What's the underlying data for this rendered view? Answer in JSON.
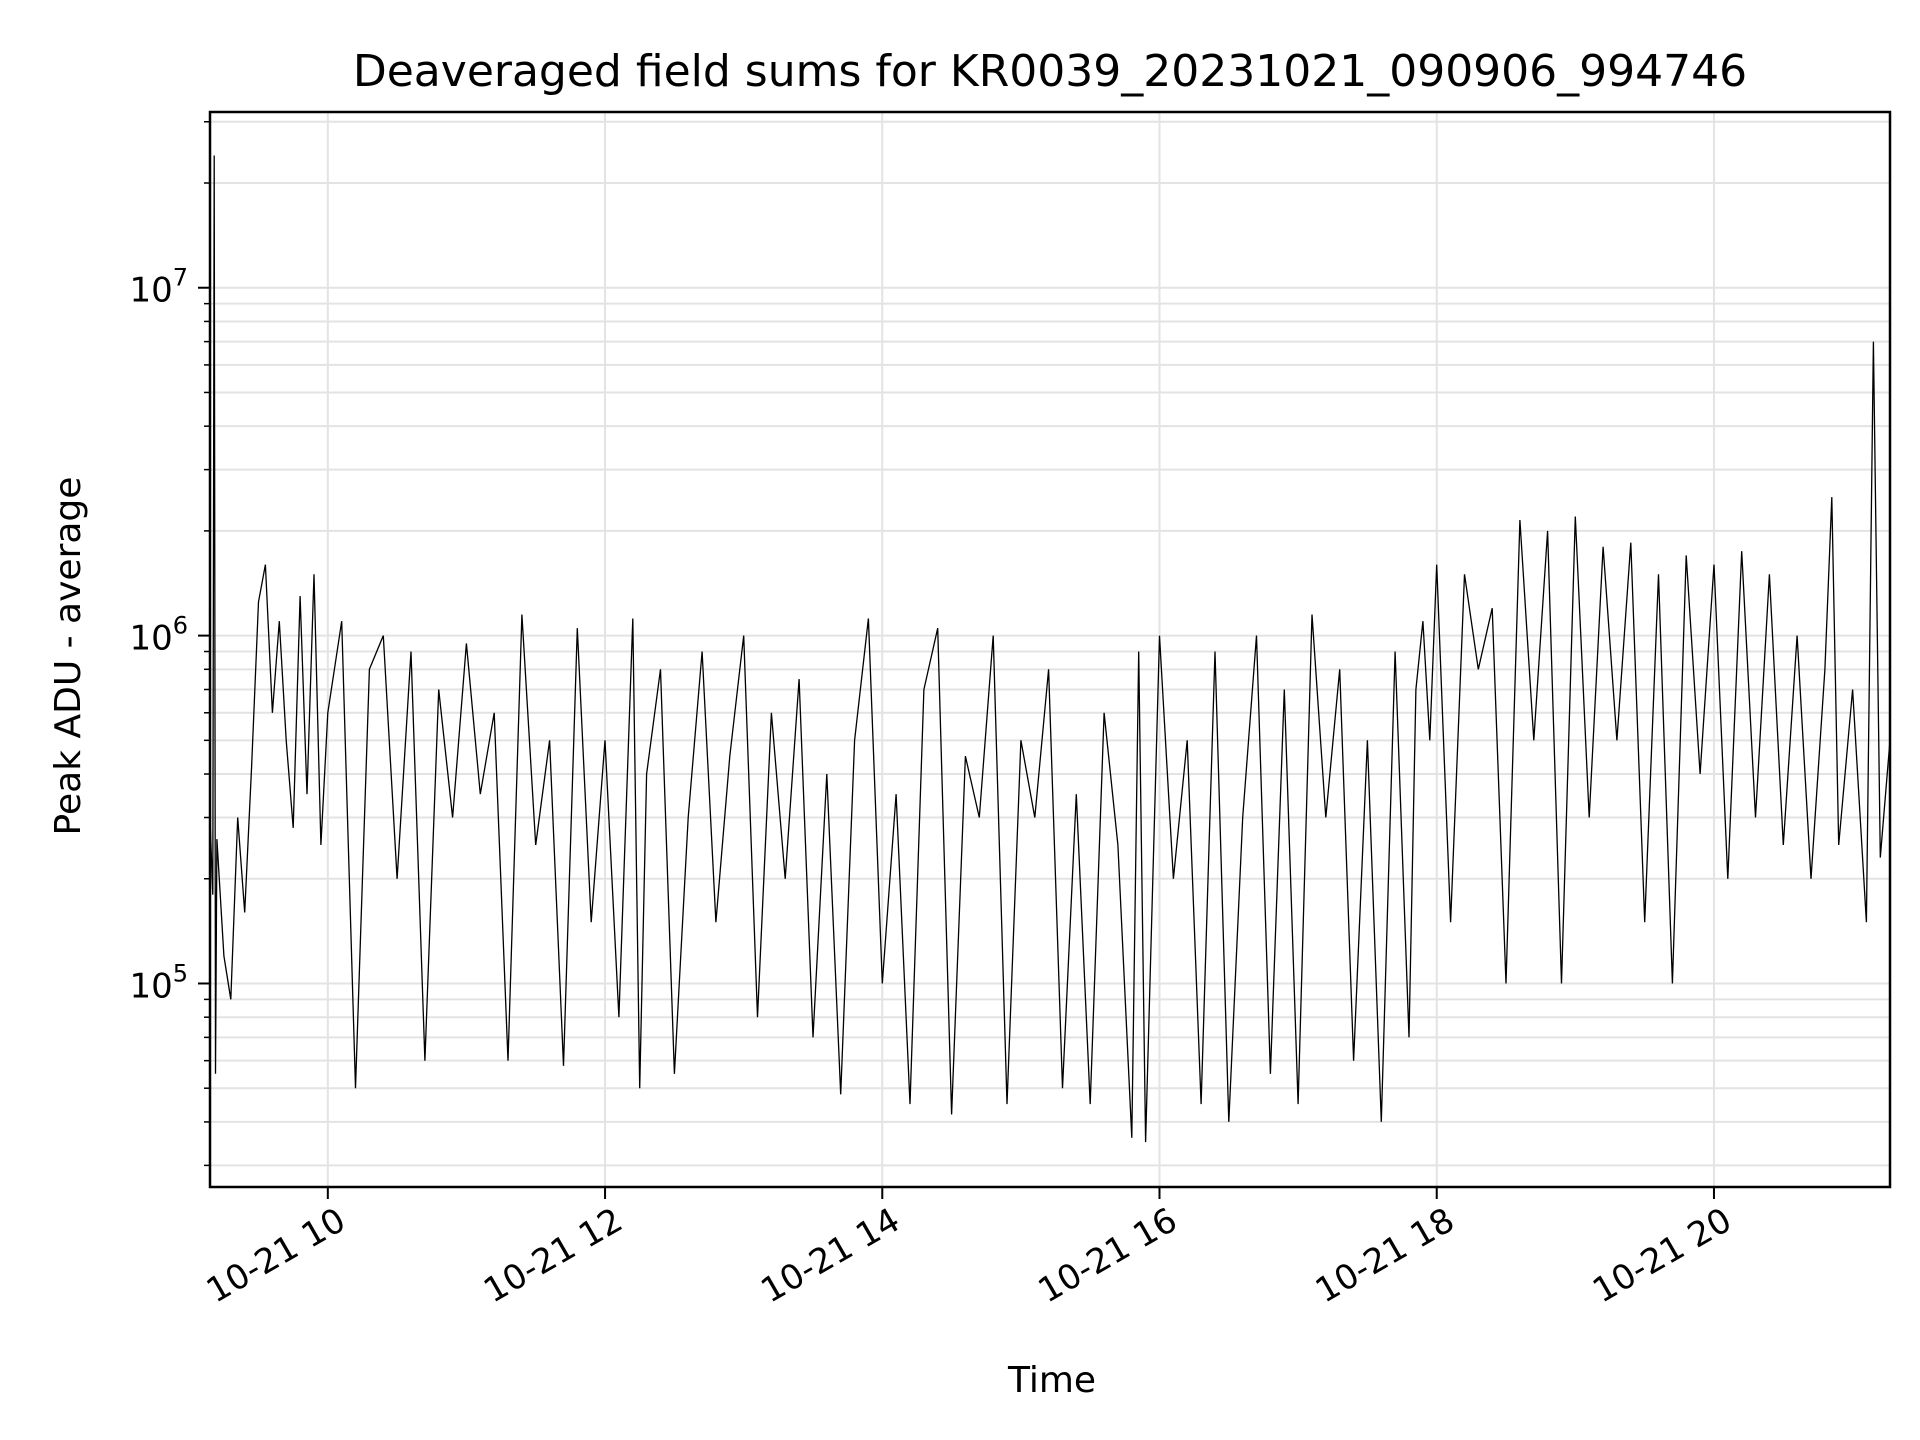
{
  "chart_data": {
    "type": "line",
    "title": "Deaveraged field sums for KR0039_20231021_090906_994746",
    "xlabel": "Time",
    "ylabel": "Peak ADU - average",
    "yscale": "log",
    "grid": true,
    "x_tick_labels": [
      "10-21 10",
      "10-21 12",
      "10-21 14",
      "10-21 16",
      "10-21 18",
      "10-21 20"
    ],
    "x_tick_hours": [
      10,
      12,
      14,
      16,
      18,
      20
    ],
    "y_tick_labels": [
      {
        "base": "10",
        "exp": "5",
        "value": 100000
      },
      {
        "base": "10",
        "exp": "6",
        "value": 1000000
      },
      {
        "base": "10",
        "exp": "7",
        "value": 10000000
      }
    ],
    "xlim_hours": [
      9.15,
      21.27
    ],
    "ylim": [
      26000,
      32000000
    ],
    "line_color": "#000000",
    "series": [
      {
        "points": [
          [
            9.15,
            300000
          ],
          [
            9.17,
            180000
          ],
          [
            9.18,
            24000000
          ],
          [
            9.19,
            55000
          ],
          [
            9.2,
            260000
          ],
          [
            9.25,
            120000
          ],
          [
            9.3,
            90000
          ],
          [
            9.35,
            300000
          ],
          [
            9.4,
            160000
          ],
          [
            9.45,
            420000
          ],
          [
            9.5,
            1250000
          ],
          [
            9.55,
            1600000
          ],
          [
            9.6,
            600000
          ],
          [
            9.65,
            1100000
          ],
          [
            9.7,
            500000
          ],
          [
            9.75,
            280000
          ],
          [
            9.8,
            1300000
          ],
          [
            9.85,
            350000
          ],
          [
            9.9,
            1500000
          ],
          [
            9.95,
            250000
          ],
          [
            10.0,
            600000
          ],
          [
            10.1,
            1100000
          ],
          [
            10.2,
            50000
          ],
          [
            10.3,
            800000
          ],
          [
            10.4,
            1000000
          ],
          [
            10.5,
            200000
          ],
          [
            10.6,
            900000
          ],
          [
            10.7,
            60000
          ],
          [
            10.8,
            700000
          ],
          [
            10.9,
            300000
          ],
          [
            11.0,
            950000
          ],
          [
            11.1,
            350000
          ],
          [
            11.2,
            600000
          ],
          [
            11.3,
            60000
          ],
          [
            11.4,
            1150000
          ],
          [
            11.5,
            250000
          ],
          [
            11.6,
            500000
          ],
          [
            11.7,
            58000
          ],
          [
            11.8,
            1050000
          ],
          [
            11.9,
            150000
          ],
          [
            12.0,
            500000
          ],
          [
            12.1,
            80000
          ],
          [
            12.2,
            1120000
          ],
          [
            12.25,
            50000
          ],
          [
            12.3,
            400000
          ],
          [
            12.4,
            800000
          ],
          [
            12.5,
            55000
          ],
          [
            12.6,
            300000
          ],
          [
            12.7,
            900000
          ],
          [
            12.8,
            150000
          ],
          [
            12.9,
            450000
          ],
          [
            13.0,
            1000000
          ],
          [
            13.1,
            80000
          ],
          [
            13.2,
            600000
          ],
          [
            13.3,
            200000
          ],
          [
            13.4,
            750000
          ],
          [
            13.5,
            70000
          ],
          [
            13.6,
            400000
          ],
          [
            13.7,
            48000
          ],
          [
            13.8,
            500000
          ],
          [
            13.9,
            1120000
          ],
          [
            14.0,
            100000
          ],
          [
            14.1,
            350000
          ],
          [
            14.2,
            45000
          ],
          [
            14.3,
            700000
          ],
          [
            14.4,
            1050000
          ],
          [
            14.5,
            42000
          ],
          [
            14.6,
            450000
          ],
          [
            14.7,
            300000
          ],
          [
            14.8,
            1000000
          ],
          [
            14.9,
            45000
          ],
          [
            15.0,
            500000
          ],
          [
            15.1,
            300000
          ],
          [
            15.2,
            800000
          ],
          [
            15.3,
            50000
          ],
          [
            15.4,
            350000
          ],
          [
            15.5,
            45000
          ],
          [
            15.6,
            600000
          ],
          [
            15.7,
            250000
          ],
          [
            15.8,
            36000
          ],
          [
            15.85,
            900000
          ],
          [
            15.9,
            35000
          ],
          [
            16.0,
            1000000
          ],
          [
            16.1,
            200000
          ],
          [
            16.2,
            500000
          ],
          [
            16.3,
            45000
          ],
          [
            16.4,
            900000
          ],
          [
            16.5,
            40000
          ],
          [
            16.6,
            300000
          ],
          [
            16.7,
            1000000
          ],
          [
            16.8,
            55000
          ],
          [
            16.9,
            700000
          ],
          [
            17.0,
            45000
          ],
          [
            17.1,
            1150000
          ],
          [
            17.2,
            300000
          ],
          [
            17.3,
            800000
          ],
          [
            17.4,
            60000
          ],
          [
            17.5,
            500000
          ],
          [
            17.6,
            40000
          ],
          [
            17.7,
            900000
          ],
          [
            17.8,
            70000
          ],
          [
            17.85,
            700000
          ],
          [
            17.9,
            1100000
          ],
          [
            17.95,
            500000
          ],
          [
            18.0,
            1600000
          ],
          [
            18.1,
            150000
          ],
          [
            18.2,
            1500000
          ],
          [
            18.3,
            800000
          ],
          [
            18.4,
            1200000
          ],
          [
            18.5,
            100000
          ],
          [
            18.6,
            2150000
          ],
          [
            18.7,
            500000
          ],
          [
            18.8,
            2000000
          ],
          [
            18.9,
            100000
          ],
          [
            19.0,
            2200000
          ],
          [
            19.1,
            300000
          ],
          [
            19.2,
            1800000
          ],
          [
            19.3,
            500000
          ],
          [
            19.4,
            1850000
          ],
          [
            19.5,
            150000
          ],
          [
            19.6,
            1500000
          ],
          [
            19.7,
            100000
          ],
          [
            19.8,
            1700000
          ],
          [
            19.9,
            400000
          ],
          [
            20.0,
            1600000
          ],
          [
            20.1,
            200000
          ],
          [
            20.2,
            1750000
          ],
          [
            20.3,
            300000
          ],
          [
            20.4,
            1500000
          ],
          [
            20.5,
            250000
          ],
          [
            20.6,
            1000000
          ],
          [
            20.7,
            200000
          ],
          [
            20.8,
            800000
          ],
          [
            20.85,
            2500000
          ],
          [
            20.9,
            250000
          ],
          [
            21.0,
            700000
          ],
          [
            21.1,
            150000
          ],
          [
            21.15,
            7000000
          ],
          [
            21.2,
            230000
          ],
          [
            21.27,
            500000
          ]
        ]
      }
    ]
  }
}
